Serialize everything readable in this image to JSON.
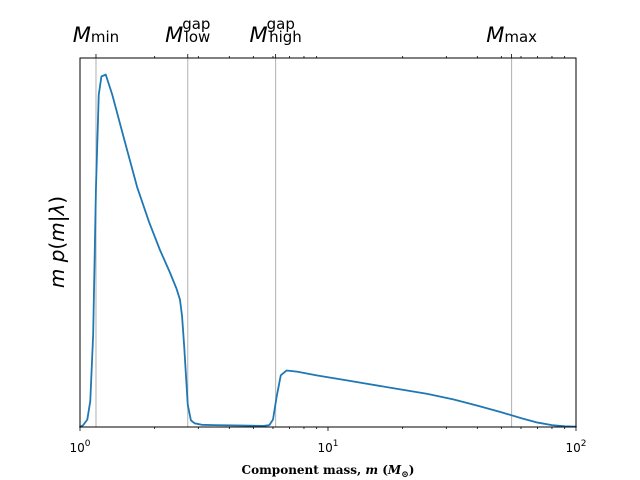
{
  "chart_data": {
    "type": "line",
    "title": "",
    "xlabel": {
      "text": "Component mass, ",
      "var": "m",
      "unit_open": " (",
      "unit_sym": "M",
      "unit_sub": "⊙",
      "unit_close": ")"
    },
    "ylabel": {
      "p1": "m p",
      "p2": "(",
      "p3": "m",
      "p4": "|",
      "p5": "λ",
      "p6": ")"
    },
    "x_scale": "log",
    "xlim": [
      1,
      100
    ],
    "ylim": [
      0,
      1
    ],
    "y_ticks_visible": false,
    "x_ticks": [
      {
        "value": 1,
        "base": "10",
        "exp": "0"
      },
      {
        "value": 10,
        "base": "10",
        "exp": "1"
      },
      {
        "value": 100,
        "base": "10",
        "exp": "2"
      }
    ],
    "markers": [
      {
        "value": 1.16,
        "sym": "M",
        "sub": "min",
        "sup": ""
      },
      {
        "value": 2.72,
        "sym": "M",
        "sub": "low",
        "sup": "gap"
      },
      {
        "value": 6.15,
        "sym": "M",
        "sub": "high",
        "sup": "gap"
      },
      {
        "value": 55.0,
        "sym": "M",
        "sub": "max",
        "sup": ""
      }
    ],
    "series": [
      {
        "color": "#1f77b4",
        "points": [
          [
            1.0,
            0.0
          ],
          [
            1.03,
            0.005
          ],
          [
            1.07,
            0.02
          ],
          [
            1.1,
            0.07
          ],
          [
            1.13,
            0.25
          ],
          [
            1.16,
            0.65
          ],
          [
            1.19,
            0.9
          ],
          [
            1.22,
            0.95
          ],
          [
            1.27,
            0.955
          ],
          [
            1.35,
            0.9
          ],
          [
            1.5,
            0.785
          ],
          [
            1.7,
            0.65
          ],
          [
            1.9,
            0.555
          ],
          [
            2.1,
            0.48
          ],
          [
            2.3,
            0.42
          ],
          [
            2.45,
            0.375
          ],
          [
            2.53,
            0.345
          ],
          [
            2.58,
            0.3
          ],
          [
            2.63,
            0.22
          ],
          [
            2.68,
            0.13
          ],
          [
            2.72,
            0.06
          ],
          [
            2.8,
            0.018
          ],
          [
            2.9,
            0.01
          ],
          [
            3.1,
            0.006
          ],
          [
            3.5,
            0.005
          ],
          [
            4.5,
            0.004
          ],
          [
            5.5,
            0.003
          ],
          [
            5.8,
            0.005
          ],
          [
            6.0,
            0.02
          ],
          [
            6.2,
            0.08
          ],
          [
            6.45,
            0.14
          ],
          [
            6.8,
            0.153
          ],
          [
            7.5,
            0.15
          ],
          [
            9.0,
            0.14
          ],
          [
            12.0,
            0.126
          ],
          [
            18.0,
            0.106
          ],
          [
            25.0,
            0.09
          ],
          [
            32.0,
            0.075
          ],
          [
            40.0,
            0.058
          ],
          [
            50.0,
            0.04
          ],
          [
            60.0,
            0.024
          ],
          [
            70.0,
            0.012
          ],
          [
            80.0,
            0.005
          ],
          [
            90.0,
            0.002
          ],
          [
            100.0,
            0.001
          ]
        ]
      }
    ],
    "grid": false,
    "legend": "none"
  }
}
